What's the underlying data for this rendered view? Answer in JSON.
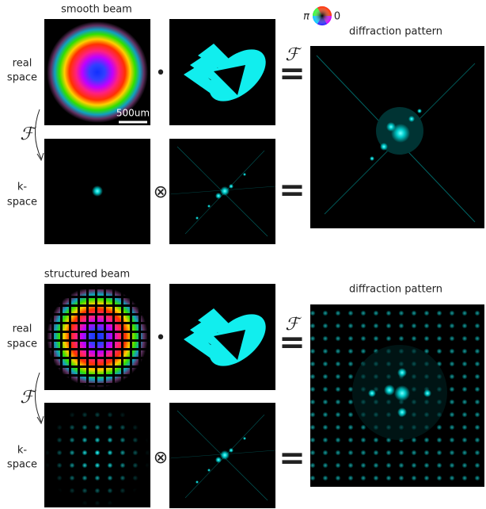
{
  "top": {
    "title": "smooth beam",
    "real_label": [
      "real",
      "space"
    ],
    "k_label": [
      "k-",
      "space"
    ],
    "fourier_left": "ℱ",
    "fourier_right": "ℱ",
    "scale_bar": "500um",
    "product": "•",
    "convolution": "⊗",
    "equals": [
      "=",
      "="
    ],
    "phase_wheel": {
      "left": "π",
      "right": "0"
    },
    "result_title": "diffraction pattern"
  },
  "bottom": {
    "title": "structured beam",
    "real_label": [
      "real",
      "space"
    ],
    "k_label": [
      "k-",
      "space"
    ],
    "fourier_left": "ℱ",
    "fourier_right": "ℱ",
    "product": "•",
    "convolution": "⊗",
    "equals": [
      "=",
      "="
    ],
    "result_title": "diffraction pattern"
  }
}
